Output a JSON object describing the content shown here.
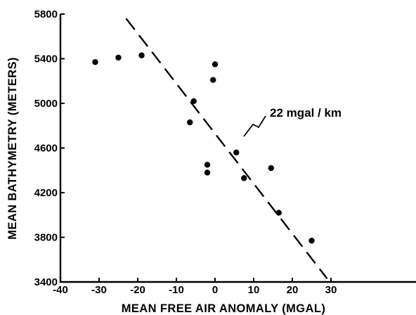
{
  "chart_data": {
    "type": "scatter",
    "title": "",
    "xlabel": "MEAN FREE AIR ANOMALY (MGAL)",
    "ylabel": "MEAN BATHYMETRY (METERS)",
    "xlim": [
      -40,
      40
    ],
    "ylim": [
      3400,
      5800
    ],
    "x_ticks": [
      -40,
      -30,
      -20,
      -10,
      0,
      10,
      20,
      30
    ],
    "x_tick_labels": [
      "-40",
      "-30",
      "-20",
      "-10",
      "0",
      "10",
      "20",
      "30"
    ],
    "y_ticks": [
      3400,
      3800,
      4200,
      4600,
      5000,
      5400,
      5800
    ],
    "y_tick_labels": [
      "3400",
      "3800",
      "4200",
      "4600",
      "5000",
      "5400",
      "5800"
    ],
    "grid": false,
    "points": [
      {
        "x": -31,
        "y": 5370
      },
      {
        "x": -25,
        "y": 5410
      },
      {
        "x": -19,
        "y": 5430
      },
      {
        "x": -6.5,
        "y": 4830
      },
      {
        "x": -5.5,
        "y": 5020
      },
      {
        "x": -2,
        "y": 4450
      },
      {
        "x": -2,
        "y": 4380
      },
      {
        "x": -0.5,
        "y": 5210
      },
      {
        "x": 0,
        "y": 5350
      },
      {
        "x": 5.5,
        "y": 4560
      },
      {
        "x": 7.5,
        "y": 4330
      },
      {
        "x": 14.5,
        "y": 4420
      },
      {
        "x": 16.5,
        "y": 4020
      },
      {
        "x": 25,
        "y": 3770
      }
    ],
    "trend_line": {
      "label": "22 mgal / km",
      "start": {
        "x": -23,
        "y": 5760
      },
      "end": {
        "x": 29,
        "y": 3430
      },
      "style": "dashed"
    },
    "annotations": [
      {
        "text": "22 mgal / km"
      }
    ]
  }
}
